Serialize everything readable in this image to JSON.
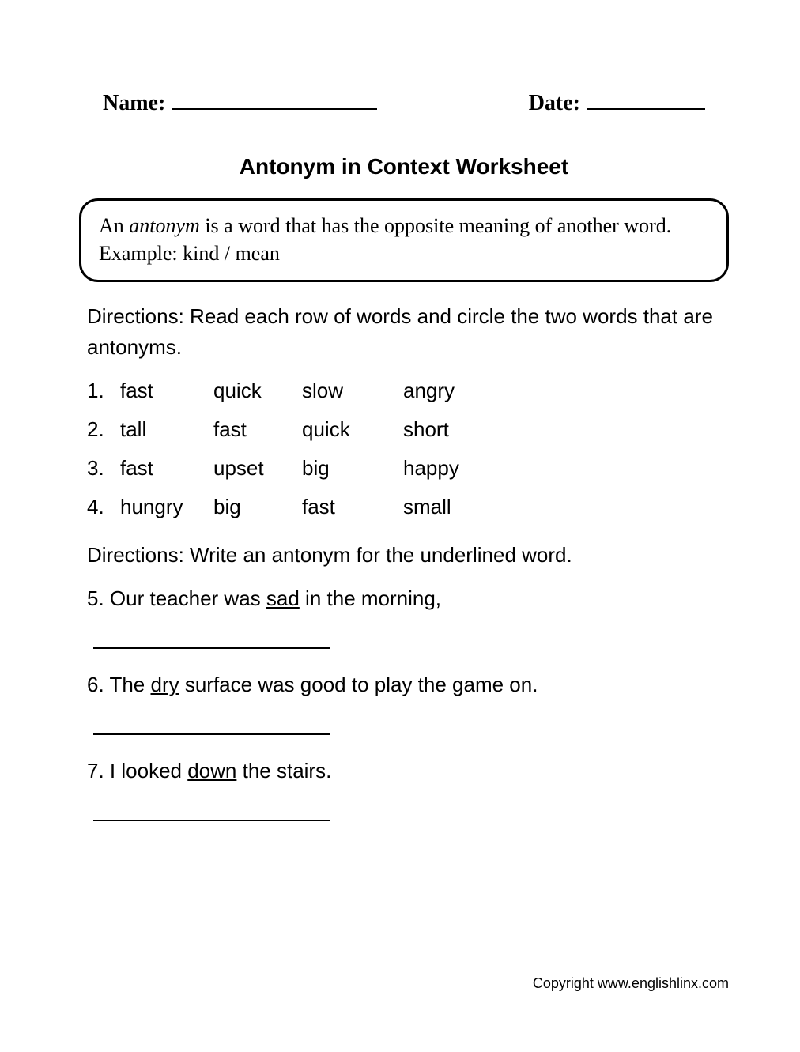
{
  "header": {
    "name_label": "Name:",
    "date_label": "Date:"
  },
  "title": "Antonym in Context Worksheet",
  "definition": {
    "prefix": "An ",
    "term": "antonym",
    "rest": " is a word that has the opposite meaning of another word. Example: kind / mean"
  },
  "directions1": "Directions: Read each row of words and circle the two words that are antonyms.",
  "rows": [
    {
      "n": "1.",
      "w": [
        "fast",
        "quick",
        "slow",
        "angry"
      ]
    },
    {
      "n": "2.",
      "w": [
        "tall",
        "fast",
        "quick",
        "short"
      ]
    },
    {
      "n": "3.",
      "w": [
        "fast",
        "upset",
        "big",
        "happy"
      ]
    },
    {
      "n": "4.",
      "w": [
        "hungry",
        "big",
        "fast",
        "small"
      ]
    }
  ],
  "directions2": "Directions: Write an antonym for the underlined word.",
  "questions": [
    {
      "n": "5.",
      "pre": "Our teacher was ",
      "u": "sad",
      "post": " in the morning,"
    },
    {
      "n": "6.",
      "pre": "The ",
      "u": "dry",
      "post": " surface was good to play the game on."
    },
    {
      "n": "7.",
      "pre": "I looked ",
      "u": "down",
      "post": " the stairs."
    }
  ],
  "footer": "Copyright www.englishlinx.com",
  "style": {
    "page_bg": "#ffffff",
    "text_color": "#000000",
    "border_color": "#000000",
    "title_fontsize": 28,
    "body_fontsize": 26,
    "footer_fontsize": 18,
    "def_border_radius": 24,
    "def_border_width": 3,
    "answer_line_width": 300,
    "name_blank_width": 260,
    "date_blank_width": 150
  }
}
